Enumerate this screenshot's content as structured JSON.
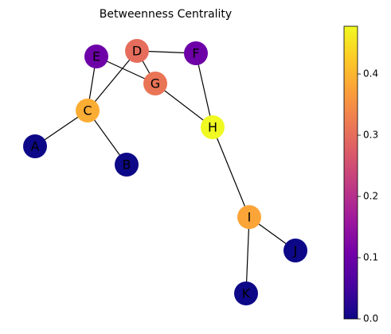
{
  "chart_data": {
    "type": "network",
    "title": "Betweenness Centrality",
    "nodes": [
      "A",
      "B",
      "C",
      "D",
      "E",
      "F",
      "G",
      "H",
      "I",
      "J",
      "K"
    ],
    "values": [
      0,
      0,
      0.389,
      0.3,
      0.1,
      0.1,
      0.311,
      0.478,
      0.378,
      0,
      0
    ],
    "edges": [
      [
        "A",
        "C"
      ],
      [
        "B",
        "C"
      ],
      [
        "C",
        "E"
      ],
      [
        "C",
        "D"
      ],
      [
        "E",
        "G"
      ],
      [
        "D",
        "G"
      ],
      [
        "D",
        "F"
      ],
      [
        "F",
        "H"
      ],
      [
        "G",
        "H"
      ],
      [
        "H",
        "I"
      ],
      [
        "I",
        "J"
      ],
      [
        "I",
        "K"
      ]
    ],
    "colormap": "plasma",
    "clim": [
      0,
      0.478
    ],
    "yticks": [
      {
        "value": 0,
        "label": "0.0"
      },
      0.1,
      0.2,
      0.3,
      0.4
    ]
  }
}
